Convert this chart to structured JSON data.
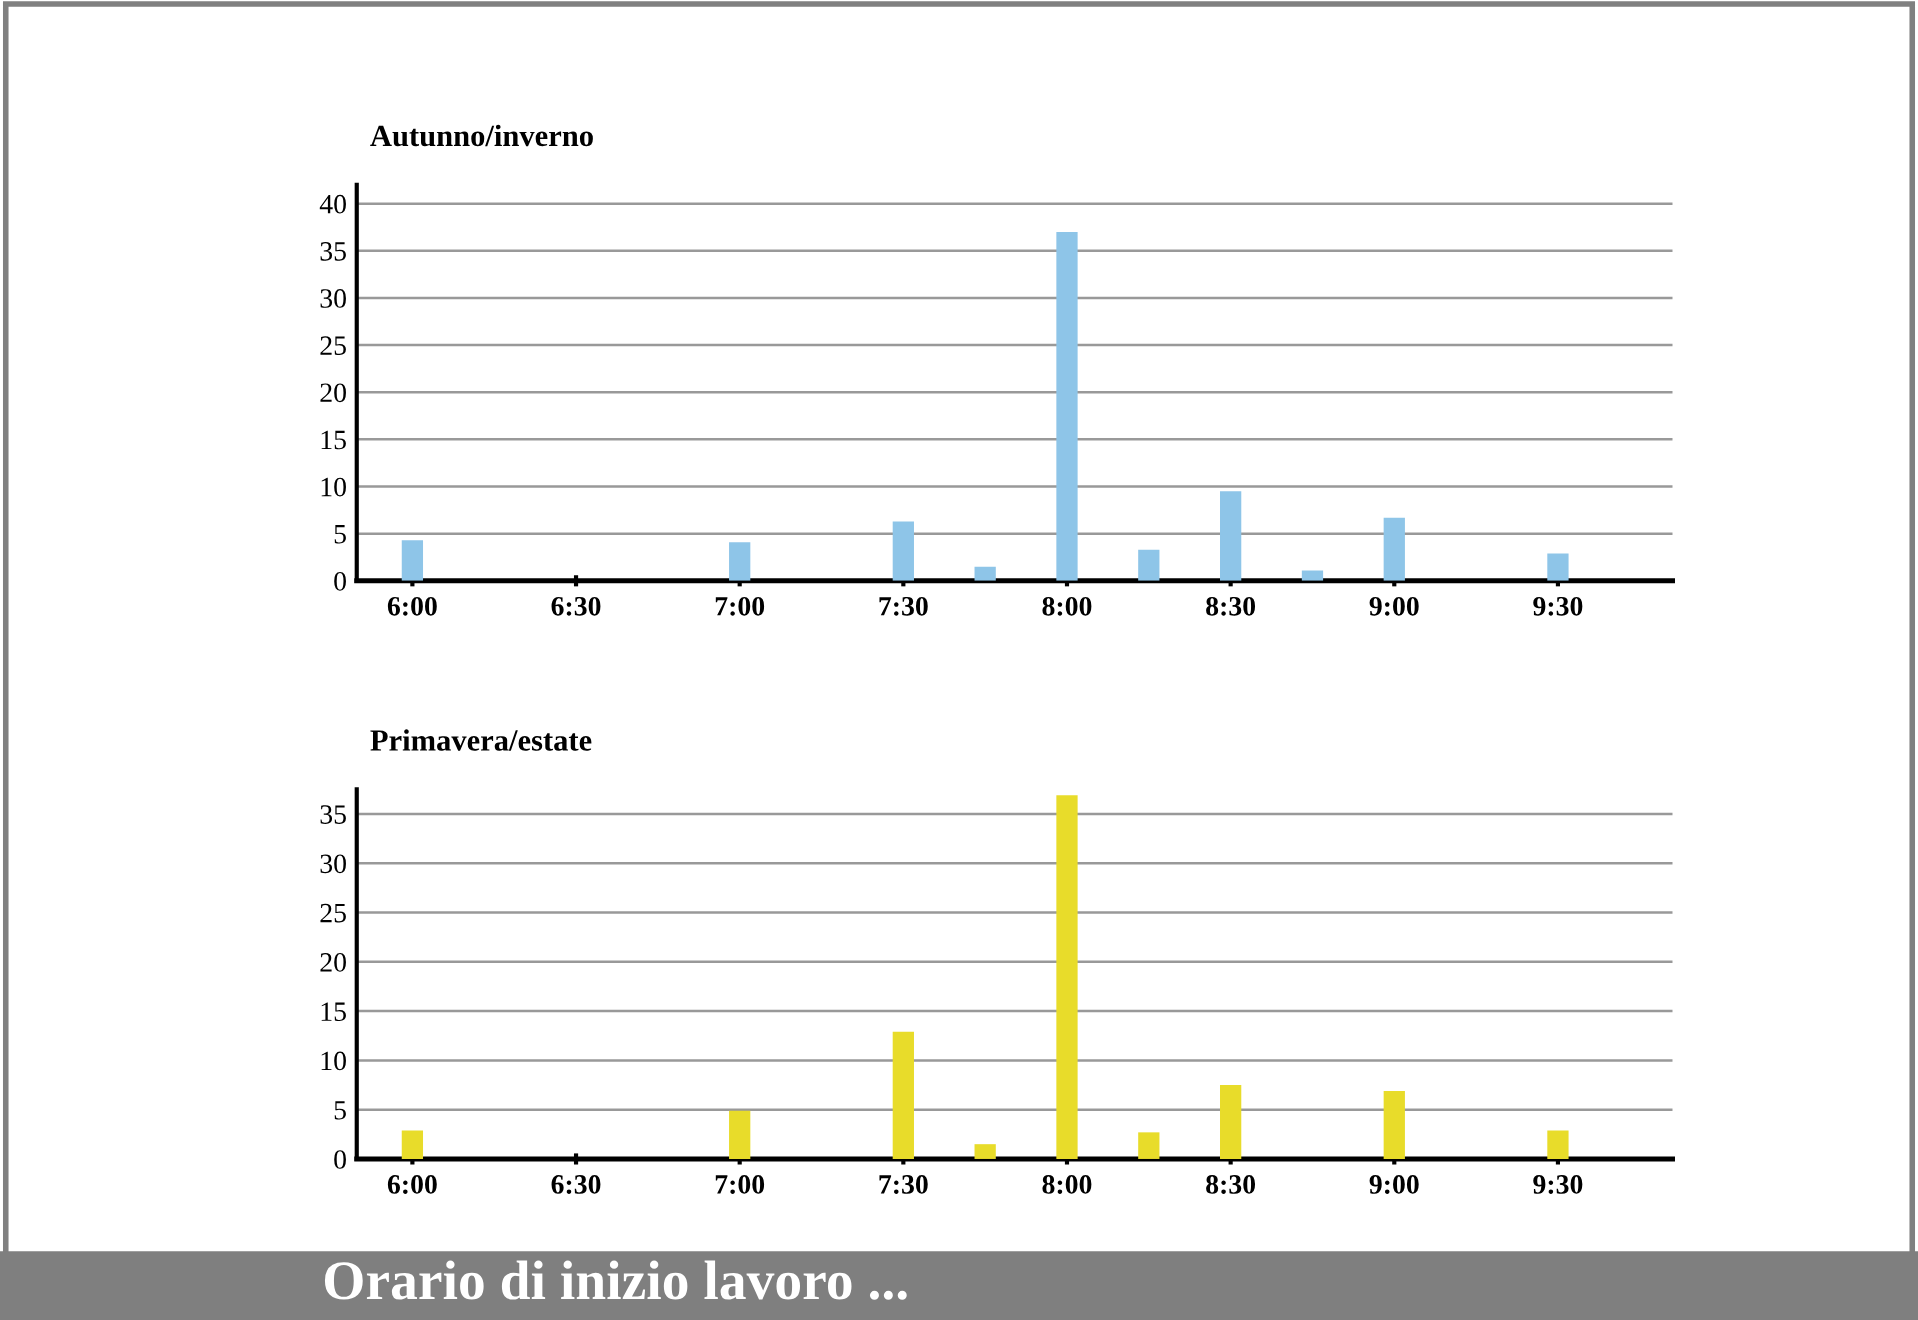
{
  "chart_data": [
    {
      "type": "bar",
      "title": "Autunno/inverno",
      "x": [
        6.0,
        7.0,
        7.5,
        7.75,
        8.0,
        8.25,
        8.5,
        8.75,
        9.0,
        9.5
      ],
      "values": [
        4.3,
        4.1,
        6.3,
        1.5,
        37,
        3.3,
        9.5,
        1.1,
        6.7,
        2.9
      ],
      "color": "#8ec5e8",
      "xlim": [
        5.83,
        9.85
      ],
      "ylim": [
        0,
        42
      ],
      "yticks": [
        0,
        5,
        10,
        15,
        20,
        25,
        30,
        35,
        40
      ],
      "xticks": [
        {
          "value": 6.0,
          "label": "6:00"
        },
        {
          "value": 6.5,
          "label": "6:30"
        },
        {
          "value": 7.0,
          "label": "7:00"
        },
        {
          "value": 7.5,
          "label": "7:30"
        },
        {
          "value": 8.0,
          "label": "8:00"
        },
        {
          "value": 8.5,
          "label": "8:30"
        },
        {
          "value": 9.0,
          "label": "9:00"
        },
        {
          "value": 9.5,
          "label": "9:30"
        }
      ],
      "grid": "y"
    },
    {
      "type": "bar",
      "title": "Primavera/estate",
      "x": [
        6.0,
        7.0,
        7.5,
        7.75,
        8.0,
        8.25,
        8.5,
        9.0,
        9.5
      ],
      "values": [
        2.9,
        4.9,
        12.9,
        1.5,
        36.9,
        2.7,
        7.5,
        6.9,
        2.9
      ],
      "color": "#e8dc2a",
      "xlim": [
        5.83,
        9.85
      ],
      "ylim": [
        0,
        37.5
      ],
      "yticks": [
        0,
        5,
        10,
        15,
        20,
        25,
        30,
        35
      ],
      "xticks": [
        {
          "value": 6.0,
          "label": "6:00"
        },
        {
          "value": 6.5,
          "label": "6:30"
        },
        {
          "value": 7.0,
          "label": "7:00"
        },
        {
          "value": 7.5,
          "label": "7:30"
        },
        {
          "value": 8.0,
          "label": "8:00"
        },
        {
          "value": 8.5,
          "label": "8:30"
        },
        {
          "value": 9.0,
          "label": "9:00"
        },
        {
          "value": 9.5,
          "label": "9:30"
        }
      ],
      "grid": "y",
      "annotations": [
        "Orario di inizio lavoro ..."
      ]
    }
  ]
}
